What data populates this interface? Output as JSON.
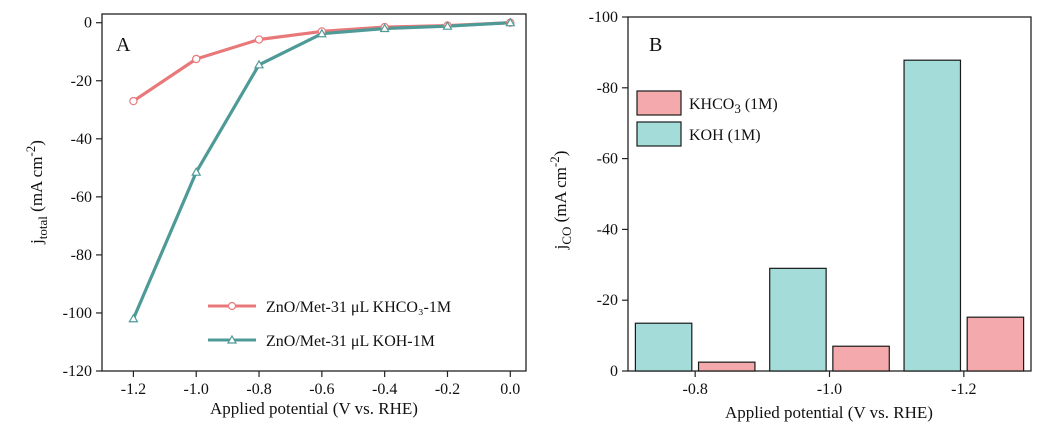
{
  "colors": {
    "khco3": "#e8787a",
    "koh": "#4e9a97",
    "khco3_bar": "#f4aaac",
    "koh_bar": "#a3dcd9",
    "bar_edge": "#1a1a1a"
  },
  "chart_data": [
    {
      "type": "line",
      "panel_label": "A",
      "xlabel": "Applied potential (V vs. RHE)",
      "ylabel_base": "j",
      "ylabel_sub": "total",
      "ylabel_unit_pre": " (mA cm",
      "ylabel_sup": "-2",
      "ylabel_unit_post": ")",
      "xlim": [
        -1.3,
        0.05
      ],
      "ylim": [
        -120,
        3
      ],
      "x_ticks": [
        -1.2,
        -1.0,
        -0.8,
        -0.6,
        -0.4,
        -0.2,
        0.0
      ],
      "x_tick_labels": [
        "-1.2",
        "-1.0",
        "-0.8",
        "-0.6",
        "-0.4",
        "-0.2",
        "0.0"
      ],
      "y_ticks": [
        0,
        -20,
        -40,
        -60,
        -80,
        -100,
        -120
      ],
      "y_tick_labels": [
        "0",
        "-20",
        "-40",
        "-60",
        "-80",
        "-100",
        "-120"
      ],
      "legend_position": "bottom-right",
      "x": [
        -1.2,
        -1.0,
        -0.8,
        -0.6,
        -0.4,
        -0.2,
        0.0
      ],
      "series": [
        {
          "name": "ZnO/Met-31 μL KHCO₃-1M",
          "marker": "circle",
          "values": [
            -27,
            -12.5,
            -5.8,
            -3,
            -1.5,
            -1,
            0
          ]
        },
        {
          "name": "ZnO/Met-31 μL KOH-1M",
          "marker": "triangle",
          "values": [
            -102,
            -51.5,
            -14.5,
            -3.8,
            -2,
            -1.2,
            0
          ]
        }
      ]
    },
    {
      "type": "bar",
      "panel_label": "B",
      "xlabel": "Applied potential (V vs. RHE)",
      "ylabel_base": "j",
      "ylabel_sub": "CO",
      "ylabel_unit_pre": " (mA cm",
      "ylabel_sup": "-2",
      "ylabel_unit_post": ")",
      "categories": [
        "-0.8",
        "-1.0",
        "-1.2"
      ],
      "ylim": [
        0,
        -100
      ],
      "y_ticks": [
        0,
        -20,
        -40,
        -60,
        -80,
        -100
      ],
      "y_tick_labels": [
        "0",
        "-20",
        "-40",
        "-60",
        "-80",
        "-100"
      ],
      "legend_position": "top-left",
      "series": [
        {
          "name_main": "KHCO",
          "name_sub": "3",
          "name_tail": " (1M)",
          "values": [
            -2.5,
            -7,
            -15.2
          ]
        },
        {
          "name_main": "KOH",
          "name_sub": "",
          "name_tail": " (1M)",
          "values": [
            -13.5,
            -29,
            -87.8
          ]
        }
      ]
    }
  ]
}
